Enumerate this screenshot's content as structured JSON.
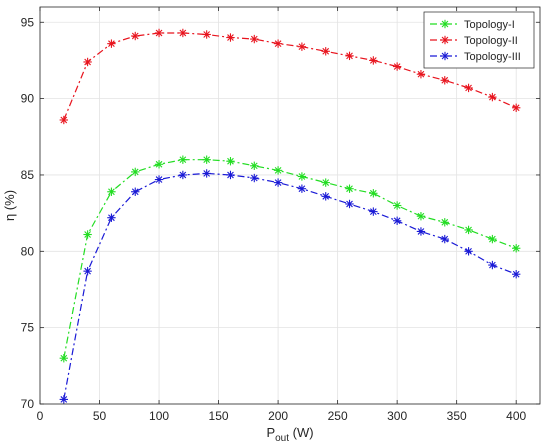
{
  "chart_data": {
    "type": "line",
    "title": "",
    "xlabel_main": "P",
    "xlabel_sub": "out",
    "xlabel_unit": " (W)",
    "ylabel": "η (%)",
    "xlim": [
      0,
      420
    ],
    "ylim": [
      70,
      96
    ],
    "xticks": [
      0,
      50,
      100,
      150,
      200,
      250,
      300,
      350,
      400
    ],
    "yticks": [
      70,
      75,
      80,
      85,
      90,
      95
    ],
    "grid": true,
    "legend_position": "top-right",
    "series": [
      {
        "name": "Topology-I",
        "color": "#22dd22",
        "x": [
          20,
          40,
          60,
          80,
          100,
          120,
          140,
          160,
          180,
          200,
          220,
          240,
          260,
          280,
          300,
          320,
          340,
          360,
          380,
          400
        ],
        "values": [
          73.0,
          81.1,
          83.9,
          85.2,
          85.7,
          86.0,
          86.0,
          85.9,
          85.6,
          85.3,
          84.9,
          84.5,
          84.1,
          83.8,
          83.0,
          82.3,
          81.9,
          81.4,
          80.8,
          80.2
        ]
      },
      {
        "name": "Topology-II",
        "color": "#e8141e",
        "x": [
          20,
          40,
          60,
          80,
          100,
          120,
          140,
          160,
          180,
          200,
          220,
          240,
          260,
          280,
          300,
          320,
          340,
          360,
          380,
          400
        ],
        "values": [
          88.6,
          92.4,
          93.6,
          94.1,
          94.3,
          94.3,
          94.2,
          94.0,
          93.9,
          93.6,
          93.4,
          93.1,
          92.8,
          92.5,
          92.1,
          91.6,
          91.2,
          90.7,
          90.1,
          89.4
        ]
      },
      {
        "name": "Topology-III",
        "color": "#1a1ad6",
        "x": [
          20,
          40,
          60,
          80,
          100,
          120,
          140,
          160,
          180,
          200,
          220,
          240,
          260,
          280,
          300,
          320,
          340,
          360,
          380,
          400
        ],
        "values": [
          70.3,
          78.7,
          82.2,
          83.9,
          84.7,
          85.0,
          85.1,
          85.0,
          84.8,
          84.5,
          84.1,
          83.6,
          83.1,
          82.6,
          82.0,
          81.3,
          80.8,
          80.0,
          79.1,
          78.5
        ]
      }
    ]
  }
}
